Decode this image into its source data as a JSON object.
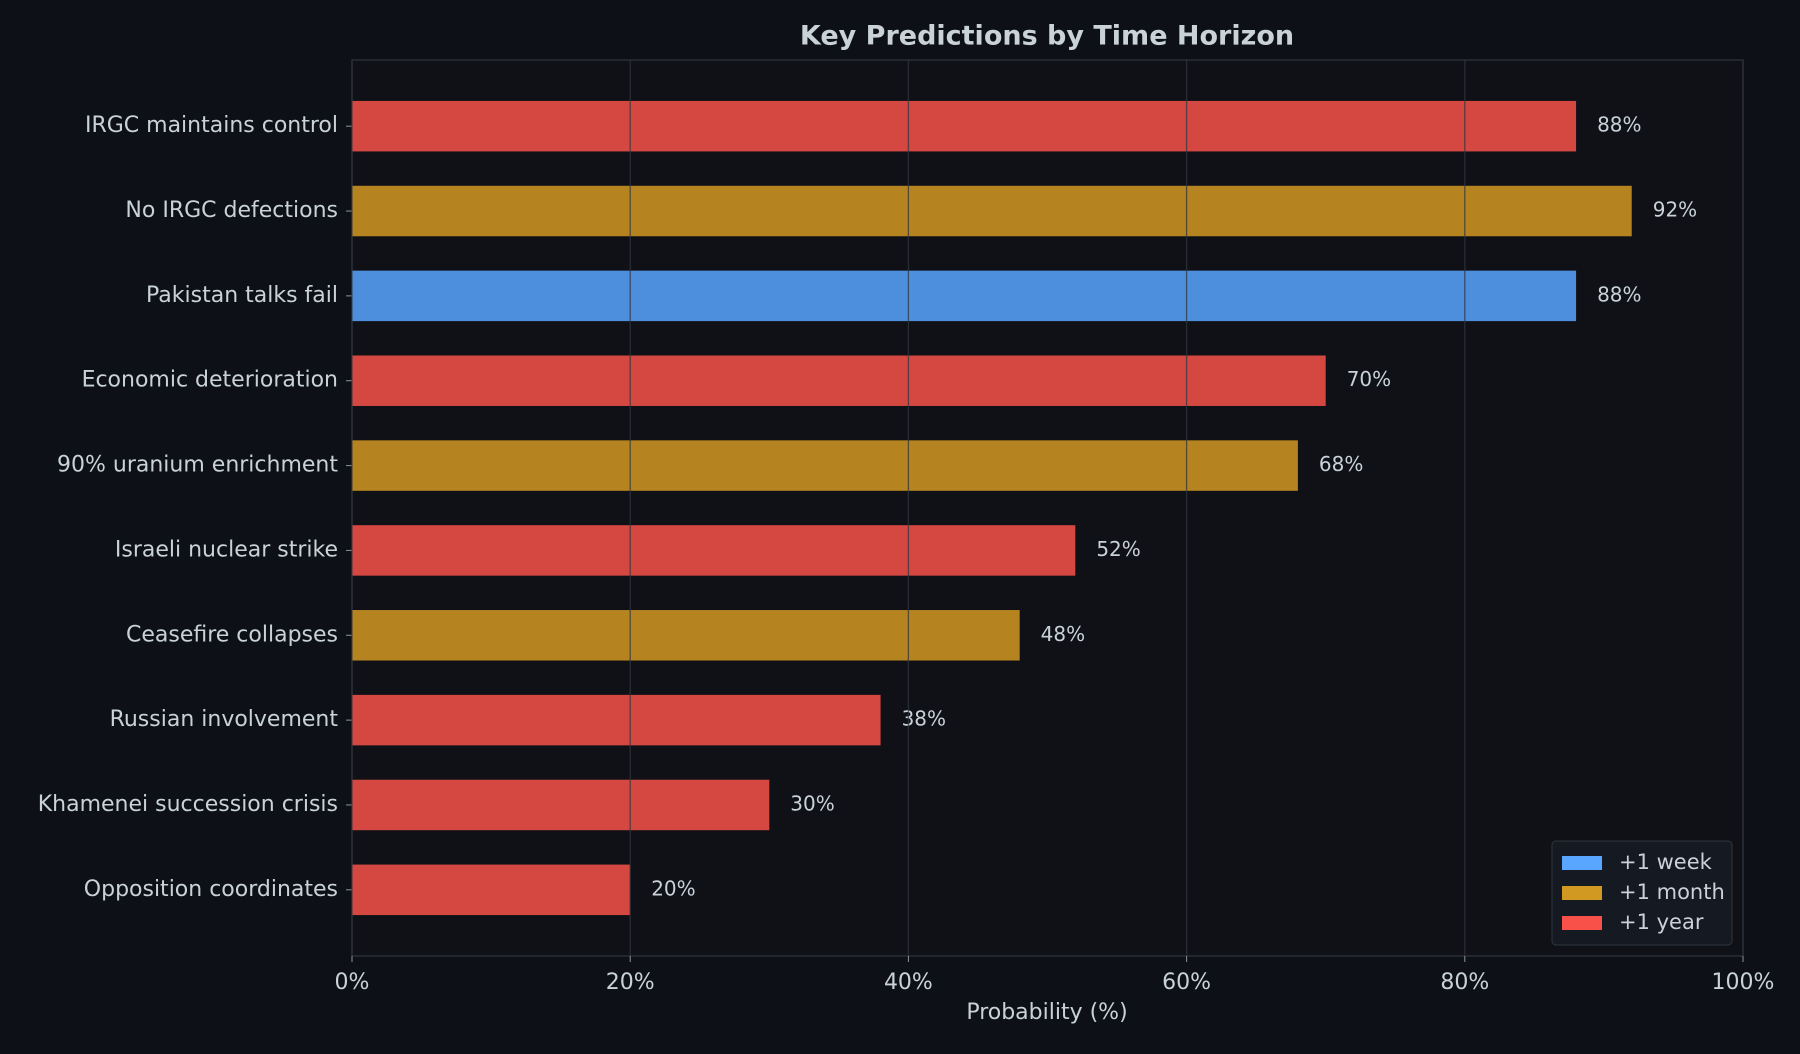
{
  "chart_data": {
    "type": "barh",
    "title": "Key Predictions by Time Horizon",
    "xlabel": "Probability (%)",
    "categories": [
      "IRGC maintains control",
      "No IRGC defections",
      "Pakistan talks fail",
      "Economic deterioration",
      "90% uranium enrichment",
      "Israeli nuclear strike",
      "Ceasefire collapses",
      "Russian involvement",
      "Khamenei succession crisis",
      "Opposition coordinates"
    ],
    "series": [
      {
        "name": "+1 week",
        "color": "#58a6ff",
        "values": [
          null,
          null,
          88,
          null,
          null,
          null,
          null,
          null,
          null,
          null
        ],
        "value_labels": [
          null,
          null,
          "88%",
          null,
          null,
          null,
          null,
          null,
          null,
          null
        ]
      },
      {
        "name": "+1 month",
        "color": "#d29922",
        "values": [
          null,
          92,
          null,
          null,
          68,
          null,
          48,
          null,
          null,
          null
        ],
        "value_labels": [
          null,
          "92%",
          null,
          null,
          "68%",
          null,
          "48%",
          null,
          null,
          null
        ]
      },
      {
        "name": "+1 year",
        "color": "#f85149",
        "values": [
          88,
          null,
          null,
          70,
          null,
          52,
          null,
          38,
          30,
          20
        ],
        "value_labels": [
          "88%",
          null,
          null,
          "70%",
          null,
          "52%",
          null,
          "38%",
          "30%",
          "20%"
        ]
      }
    ],
    "xlim": [
      0,
      100
    ],
    "xticks": [
      {
        "value": 0,
        "label": "0%"
      },
      {
        "value": 20,
        "label": "20%"
      },
      {
        "value": 40,
        "label": "40%"
      },
      {
        "value": 60,
        "label": "60%"
      },
      {
        "value": 80,
        "label": "80%"
      },
      {
        "value": 100,
        "label": "100%"
      }
    ],
    "grid": true,
    "legend": "lower right"
  }
}
